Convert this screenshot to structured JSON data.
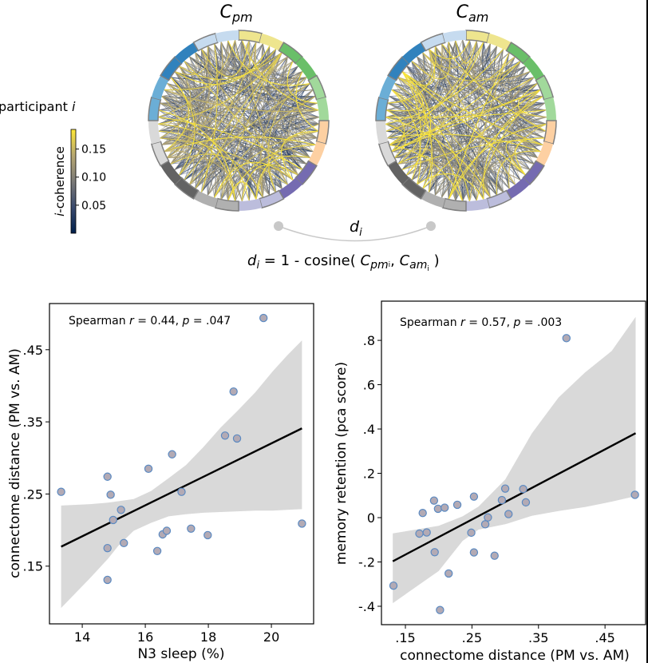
{
  "figure": {
    "top_panel": {
      "left_title": {
        "main": "C",
        "sub": "pm"
      },
      "right_title": {
        "main": "C",
        "sub": "am"
      },
      "participant_label": {
        "text": "participant ",
        "italic": "i"
      },
      "colorbar": {
        "label_italic": "i",
        "label_rest": "-coherence",
        "ticks": [
          "0.05",
          "0.10",
          "0.15"
        ],
        "tick_values": [
          0.05,
          0.1,
          0.15
        ],
        "range": [
          0.0,
          0.185
        ],
        "colormap_stops": [
          "#00204c",
          "#3a4a6e",
          "#7c7b78",
          "#b8a872",
          "#fde737"
        ]
      },
      "ring_segment_colors": [
        "#eee58e",
        "#eee58e",
        "#6abf69",
        "#6abf69",
        "#a1d99b",
        "#a1d99b",
        "#fdd0a2",
        "#fdd0a2",
        "#756bb1",
        "#756bb1",
        "#bcbddc",
        "#bcbddc",
        "#b0b0b0",
        "#b0b0b0",
        "#636363",
        "#636363",
        "#d9d9d9",
        "#d9d9d9",
        "#6baed6",
        "#6baed6",
        "#3182bd",
        "#3182bd",
        "#c6dbef",
        "#c6dbef"
      ],
      "distance_label": {
        "main": "d",
        "sub": "i"
      },
      "formula": {
        "d": "d",
        "d_sub": "i",
        "eq": " = 1 - cosine( ",
        "c1": "C",
        "c1_sub": "pm",
        "c1_subsub": "i",
        "comma": ", ",
        "c2": "C",
        "c2_sub": "am",
        "c2_subsub": "i",
        "close": " )"
      }
    }
  },
  "chart_data": [
    {
      "type": "scatter",
      "title": "",
      "annotation": {
        "prefix": "Spearman ",
        "r_sym": "r",
        "r_text": " = 0.44, ",
        "p_sym": "p",
        "p_text": " = .047"
      },
      "xlabel": "N3 sleep (%)",
      "ylabel": "connectome distance (PM vs. AM)",
      "xlim": [
        12.96,
        21.34
      ],
      "ylim": [
        0.07,
        0.514
      ],
      "xticks": [
        14,
        16,
        18,
        20
      ],
      "xtick_labels": [
        "14",
        "16",
        "18",
        "20"
      ],
      "yticks": [
        0.15,
        0.25,
        0.35,
        0.45
      ],
      "ytick_labels": [
        ".15",
        ".25",
        ".35",
        ".45"
      ],
      "grid": false,
      "points": {
        "x": [
          13.33,
          14.8,
          14.9,
          15.23,
          14.98,
          14.8,
          15.32,
          14.8,
          16.1,
          16.85,
          17.15,
          16.55,
          16.68,
          16.38,
          17.45,
          17.98,
          18.53,
          18.8,
          18.91,
          19.75,
          20.97
        ],
        "y": [
          0.253,
          0.274,
          0.249,
          0.228,
          0.214,
          0.175,
          0.182,
          0.131,
          0.285,
          0.305,
          0.253,
          0.194,
          0.199,
          0.171,
          0.202,
          0.193,
          0.331,
          0.392,
          0.327,
          0.494,
          0.209
        ]
      },
      "regression": {
        "x": [
          13.33,
          20.97
        ],
        "y": [
          0.177,
          0.341
        ]
      },
      "ci_band": {
        "x": [
          13.33,
          14.26,
          14.81,
          15.14,
          15.63,
          16.18,
          16.74,
          17.29,
          17.84,
          18.39,
          18.94,
          19.49,
          20.04,
          20.5,
          20.97
        ],
        "upper": [
          0.234,
          0.236,
          0.238,
          0.24,
          0.243,
          0.254,
          0.272,
          0.29,
          0.315,
          0.342,
          0.366,
          0.391,
          0.42,
          0.442,
          0.463
        ],
        "lower": [
          0.092,
          0.134,
          0.16,
          0.178,
          0.199,
          0.21,
          0.219,
          0.222,
          0.224,
          0.225,
          0.226,
          0.227,
          0.227,
          0.228,
          0.229
        ]
      },
      "marker_fill": "#b3aab4",
      "marker_edge": "#5b8ac2",
      "band_color": "#d9d9d9",
      "line_color": "#000000"
    },
    {
      "type": "scatter",
      "title": "",
      "annotation": {
        "prefix": "Spearman ",
        "r_sym": "r",
        "r_text": " = 0.57, ",
        "p_sym": "p",
        "p_text": " = .003"
      },
      "xlabel": "connectome distance (PM vs. AM)",
      "ylabel": "memory retention (pca score)",
      "xlim": [
        0.114,
        0.511
      ],
      "ylim": [
        -0.483,
        0.977
      ],
      "xticks": [
        0.15,
        0.25,
        0.35,
        0.45
      ],
      "xtick_labels": [
        ".15",
        ".25",
        ".35",
        ".45"
      ],
      "yticks": [
        -0.4,
        -0.2,
        0.0,
        0.2,
        0.4,
        0.6,
        0.8
      ],
      "ytick_labels": [
        "-.4",
        "-.2",
        "0",
        ".2",
        ".4",
        ".6",
        ".8"
      ],
      "grid": false,
      "points": {
        "x": [
          0.132,
          0.202,
          0.215,
          0.194,
          0.171,
          0.182,
          0.176,
          0.193,
          0.199,
          0.209,
          0.228,
          0.253,
          0.249,
          0.253,
          0.27,
          0.274,
          0.284,
          0.295,
          0.3,
          0.305,
          0.327,
          0.331,
          0.392,
          0.495
        ],
        "y": [
          -0.307,
          -0.417,
          -0.252,
          -0.156,
          -0.072,
          -0.067,
          0.021,
          0.077,
          0.04,
          0.045,
          0.058,
          0.095,
          -0.068,
          -0.157,
          -0.03,
          0.001,
          -0.172,
          0.079,
          0.131,
          0.016,
          0.129,
          0.069,
          0.81,
          0.103
        ]
      },
      "regression": {
        "x": [
          0.131,
          0.496
        ],
        "y": [
          -0.197,
          0.381
        ]
      },
      "ci_band": {
        "x": [
          0.131,
          0.2,
          0.236,
          0.26,
          0.3,
          0.34,
          0.38,
          0.42,
          0.46,
          0.496
        ],
        "upper": [
          -0.071,
          -0.037,
          0.006,
          0.05,
          0.172,
          0.38,
          0.542,
          0.655,
          0.752,
          0.906
        ],
        "lower": [
          -0.386,
          -0.241,
          -0.105,
          -0.054,
          -0.03,
          0.008,
          0.03,
          0.048,
          0.072,
          0.097
        ]
      },
      "marker_fill": "#b3aab4",
      "marker_edge": "#5b8ac2",
      "band_color": "#d9d9d9",
      "line_color": "#000000"
    }
  ]
}
